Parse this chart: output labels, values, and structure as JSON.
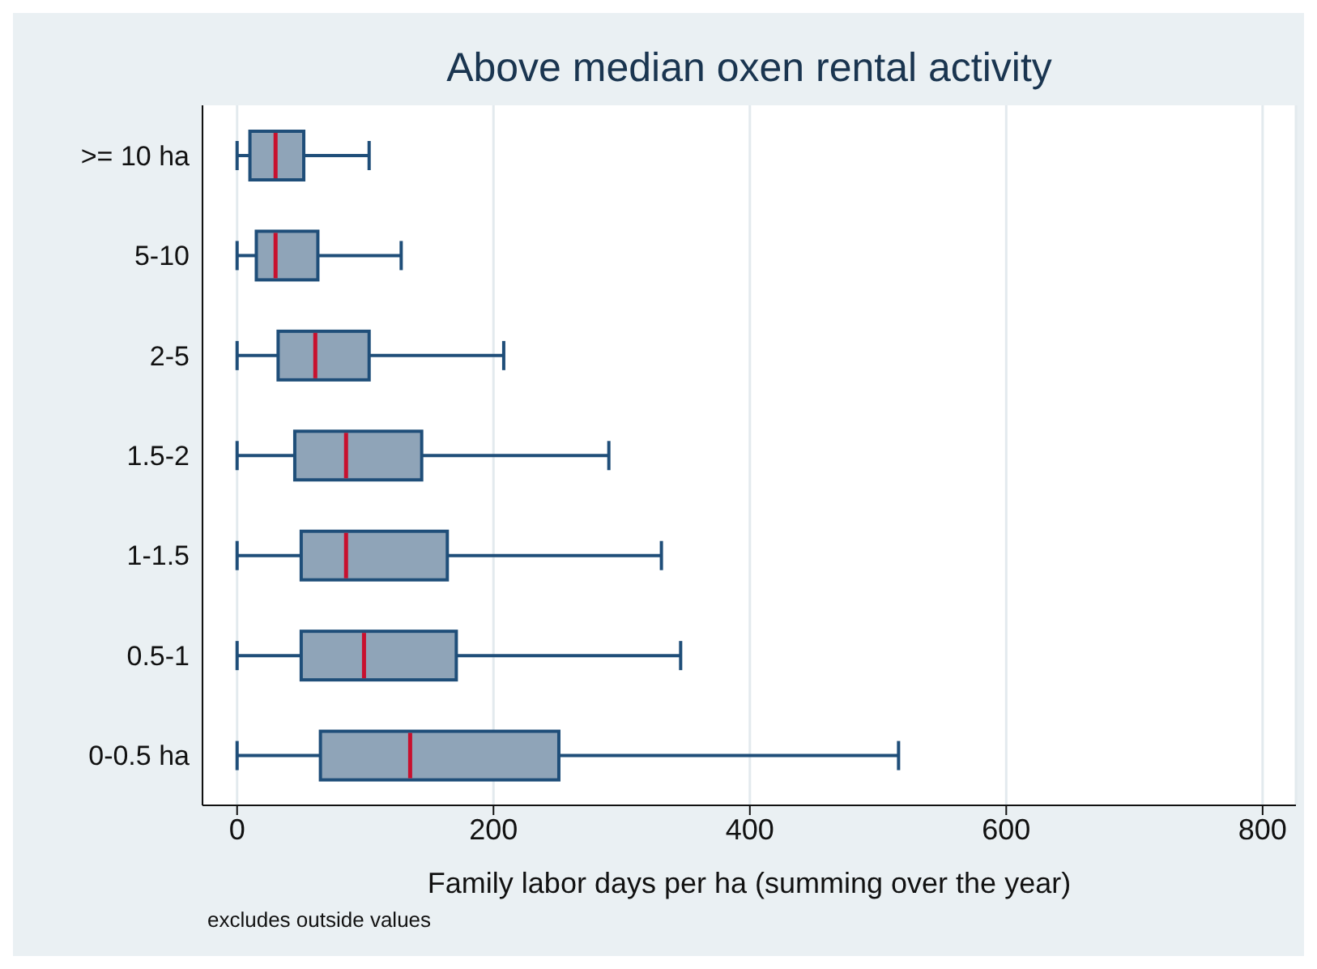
{
  "chart_data": {
    "type": "box",
    "orientation": "horizontal",
    "title": "Above median oxen rental activity",
    "xlabel": "Family labor days per ha (summing over the year)",
    "annotations": [
      "excludes outside values"
    ],
    "categories": [
      ">= 10 ha",
      "5-10",
      "2-5",
      "1.5-2",
      "1-1.5",
      "0.5-1",
      "0-0.5 ha"
    ],
    "color": "#8fa4b8",
    "boxes": [
      {
        "low": 0,
        "q1": 10,
        "median": 30,
        "q3": 52,
        "high": 103
      },
      {
        "low": 0,
        "q1": 15,
        "median": 30,
        "q3": 63,
        "high": 128
      },
      {
        "low": 0,
        "q1": 32,
        "median": 61,
        "q3": 103,
        "high": 208
      },
      {
        "low": 0,
        "q1": 45,
        "median": 85,
        "q3": 144,
        "high": 290
      },
      {
        "low": 0,
        "q1": 50,
        "median": 85,
        "q3": 164,
        "high": 331
      },
      {
        "low": 0,
        "q1": 50,
        "median": 99,
        "q3": 171,
        "high": 346
      },
      {
        "low": 0,
        "q1": 65,
        "median": 135,
        "q3": 251,
        "high": 516
      }
    ],
    "xlim": [
      -27,
      826
    ],
    "xticks": [
      0,
      200,
      400,
      600,
      800
    ],
    "grid": "x"
  }
}
